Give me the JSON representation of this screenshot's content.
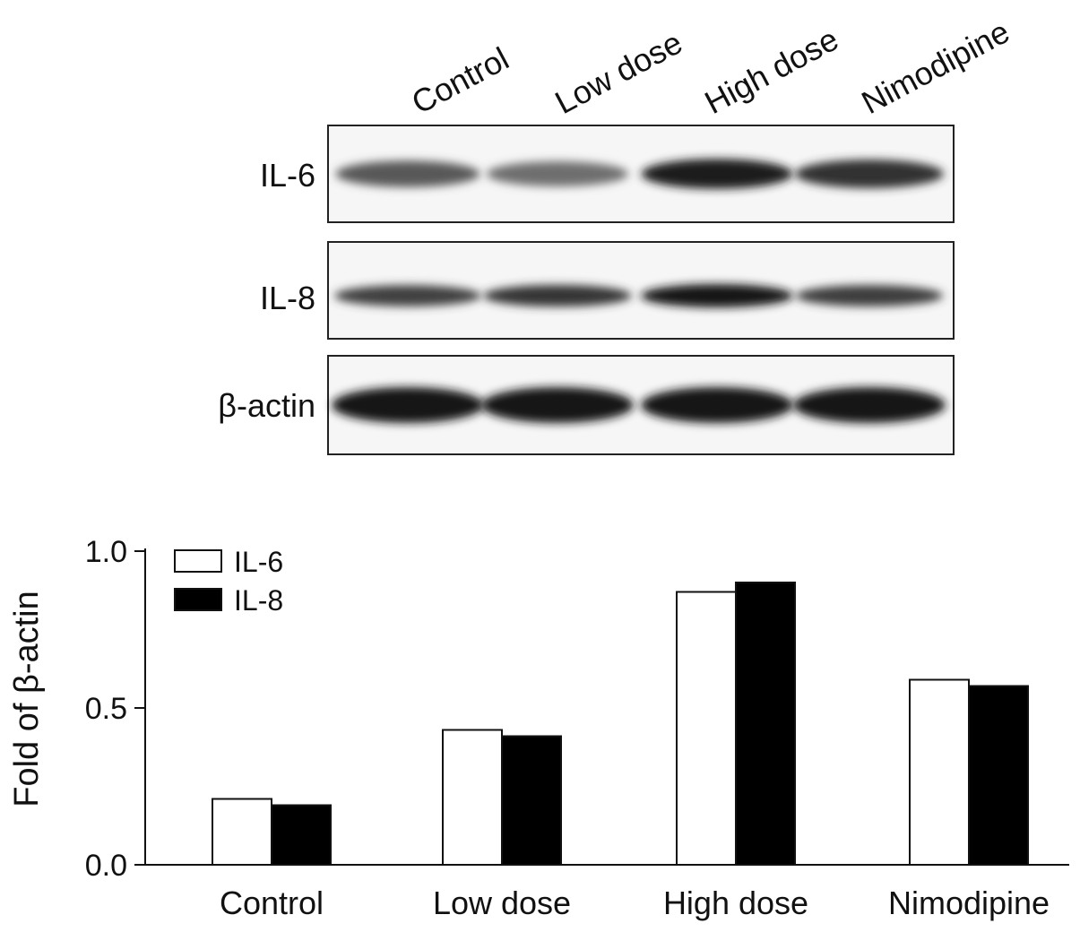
{
  "blot": {
    "lanes": [
      "Control",
      "Low dose",
      "High dose",
      "Nimodipine"
    ],
    "rows": [
      {
        "label": "IL-6",
        "intensity": [
          0.55,
          0.4,
          0.95,
          0.8
        ]
      },
      {
        "label": "IL-8",
        "intensity": [
          0.7,
          0.78,
          1.0,
          0.72
        ]
      },
      {
        "label": "β-actin",
        "intensity": [
          1.0,
          1.0,
          1.0,
          1.0
        ]
      }
    ]
  },
  "chart_data": {
    "type": "bar",
    "categories": [
      "Control",
      "Low dose",
      "High dose",
      "Nimodipine"
    ],
    "series": [
      {
        "name": "IL-6",
        "values": [
          0.21,
          0.43,
          0.87,
          0.59
        ],
        "fill": "#ffffff"
      },
      {
        "name": "IL-8",
        "values": [
          0.19,
          0.41,
          0.9,
          0.57
        ],
        "fill": "#000000"
      }
    ],
    "ylabel": "Fold of β-actin",
    "xlabel": "",
    "title": "",
    "ylim": [
      0.0,
      1.0
    ],
    "yticks": [
      "0.0",
      "0.5",
      "1.0"
    ],
    "grid": false,
    "legend_position": "top-left"
  }
}
